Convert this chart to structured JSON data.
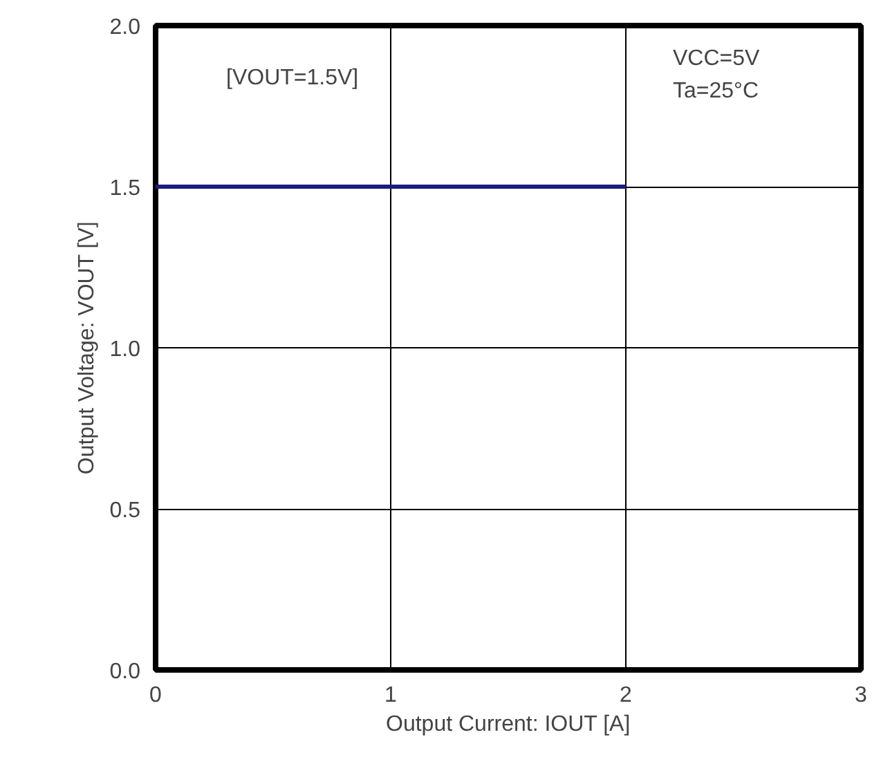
{
  "chart_data": {
    "type": "line",
    "xlabel": "Output Current: IOUT [A]",
    "ylabel": "Output Voltage: VOUT [V]",
    "x": [
      0,
      2
    ],
    "series": [
      {
        "color": "#1c1c7c",
        "values": [
          1.5,
          1.5
        ]
      }
    ],
    "xlim": [
      0,
      3
    ],
    "xticks": [
      0,
      1,
      2,
      3
    ],
    "ylim": [
      0,
      2
    ],
    "yticks": [
      {
        "value": 0,
        "label": "0.0"
      },
      {
        "value": 0.5,
        "label": "0.5"
      },
      {
        "value": 1,
        "label": "1.0"
      },
      {
        "value": 1.5,
        "label": "1.5"
      },
      {
        "value": 2,
        "label": "2.0"
      }
    ],
    "grid": true,
    "annotations": [
      "[VOUT=1.5V]",
      "VCC=5V",
      "Ta=25°C"
    ]
  }
}
